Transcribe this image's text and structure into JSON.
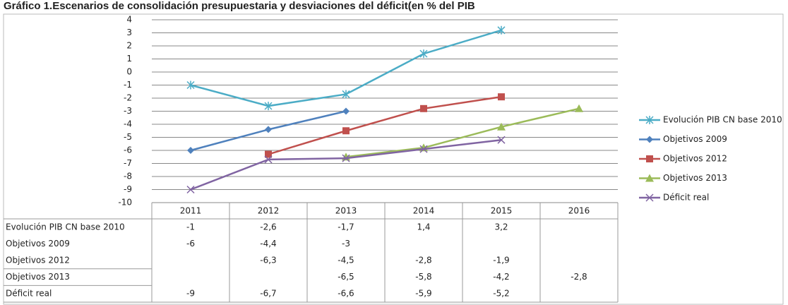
{
  "chart_data": {
    "type": "line",
    "title": "Gráfico 1.Escenarios de consolidación presupuestaria y desviaciones del déficit(en % del PIB",
    "categories": [
      "2011",
      "2012",
      "2013",
      "2014",
      "2015",
      "2016"
    ],
    "ylim": [
      -10,
      4
    ],
    "yticks": [
      4,
      3,
      2,
      1,
      0,
      -1,
      -2,
      -3,
      -4,
      -5,
      -6,
      -7,
      -8,
      -9,
      -10
    ],
    "grid": true,
    "legend": "right",
    "series": [
      {
        "name": "Evolución PIB CN base 2010",
        "color": "#4bacc6",
        "marker": "star",
        "values": [
          -1,
          -2.6,
          -1.7,
          1.4,
          3.2,
          null
        ],
        "value_labels": [
          "-1",
          "-2,6",
          "-1,7",
          "1,4",
          "3,2",
          null
        ]
      },
      {
        "name": "Objetivos 2009",
        "color": "#4f81bd",
        "marker": "diamond",
        "values": [
          -6,
          -4.4,
          -3,
          null,
          null,
          null
        ],
        "value_labels": [
          "-6",
          "-4,4",
          "-3",
          null,
          null,
          null
        ]
      },
      {
        "name": "Objetivos 2012",
        "color": "#c0504d",
        "marker": "square",
        "values": [
          null,
          -6.3,
          -4.5,
          -2.8,
          -1.9,
          null
        ],
        "value_labels": [
          null,
          "-6,3",
          "-4,5",
          "-2,8",
          "-1,9",
          null
        ]
      },
      {
        "name": "Objetivos 2013",
        "color": "#9bbb59",
        "marker": "triangle",
        "values": [
          null,
          null,
          -6.5,
          -5.8,
          -4.2,
          -2.8
        ],
        "value_labels": [
          null,
          null,
          "-6,5",
          "-5,8",
          "-4,2",
          "-2,8"
        ]
      },
      {
        "name": "Déficit real",
        "color": "#8064a2",
        "marker": "x",
        "values": [
          -9,
          -6.7,
          -6.6,
          -5.9,
          -5.2,
          null
        ],
        "value_labels": [
          "-9",
          "-6,7",
          "-6,6",
          "-5,9",
          "-5,2",
          null
        ]
      }
    ]
  }
}
